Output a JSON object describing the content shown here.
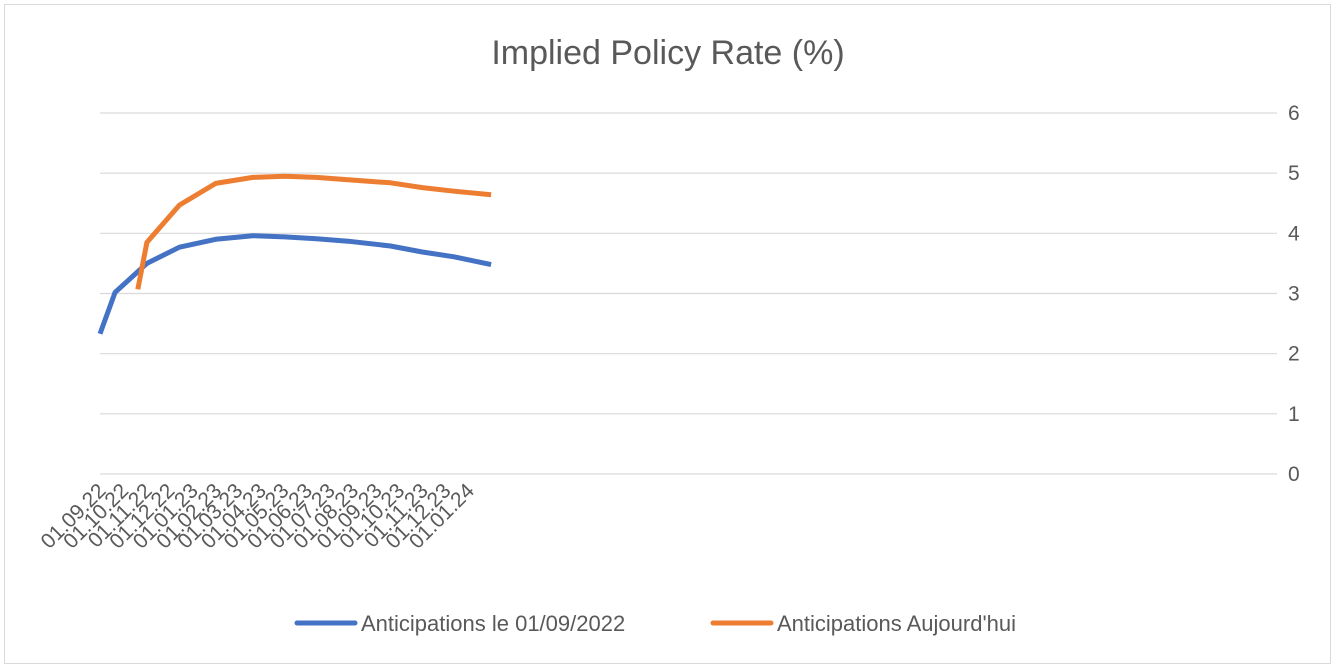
{
  "chart_data": {
    "type": "line",
    "title": "Implied Policy Rate (%)",
    "xlabel": "",
    "ylabel": "",
    "categories": [
      "01.09.22",
      "01.10.22",
      "01.11.22",
      "01.12.22",
      "01.01.23",
      "01.02.23",
      "01.03.23",
      "01.04.23",
      "01.05.23",
      "01.06.23",
      "01.07.23",
      "01.08.23",
      "01.09.23",
      "01.10.23",
      "01.11.23",
      "01.12.23",
      "01.01.24"
    ],
    "ylim": [
      0,
      6
    ],
    "yticks": [
      "0",
      "1",
      "2",
      "3",
      "4",
      "5",
      "6"
    ],
    "y_axis_side": "right",
    "grid": true,
    "legend_position": "bottom",
    "series": [
      {
        "name": "Anticipations le 01/09/2022",
        "color": "#4472c4",
        "points": [
          {
            "x": "2022-09-01",
            "y": 2.33
          },
          {
            "x": "2022-09-21",
            "y": 3.02
          },
          {
            "x": "2022-11-02",
            "y": 3.5
          },
          {
            "x": "2022-12-15",
            "y": 3.77
          },
          {
            "x": "2023-02-01",
            "y": 3.9
          },
          {
            "x": "2023-03-22",
            "y": 3.96
          },
          {
            "x": "2023-05-03",
            "y": 3.94
          },
          {
            "x": "2023-06-14",
            "y": 3.91
          },
          {
            "x": "2023-07-26",
            "y": 3.87
          },
          {
            "x": "2023-09-20",
            "y": 3.79
          },
          {
            "x": "2023-11-01",
            "y": 3.69
          },
          {
            "x": "2023-12-13",
            "y": 3.61
          },
          {
            "x": "2024-01-31",
            "y": 3.48
          }
        ]
      },
      {
        "name": "Anticipations Aujourd'hui",
        "color": "#ed7d31",
        "points": [
          {
            "x": "2022-10-21",
            "y": 3.07
          },
          {
            "x": "2022-11-02",
            "y": 3.85
          },
          {
            "x": "2022-12-15",
            "y": 4.47
          },
          {
            "x": "2023-02-01",
            "y": 4.83
          },
          {
            "x": "2023-03-22",
            "y": 4.93
          },
          {
            "x": "2023-05-03",
            "y": 4.95
          },
          {
            "x": "2023-06-14",
            "y": 4.93
          },
          {
            "x": "2023-07-26",
            "y": 4.89
          },
          {
            "x": "2023-09-20",
            "y": 4.84
          },
          {
            "x": "2023-11-01",
            "y": 4.76
          },
          {
            "x": "2023-12-13",
            "y": 4.7
          },
          {
            "x": "2024-01-31",
            "y": 4.64
          }
        ]
      }
    ]
  }
}
